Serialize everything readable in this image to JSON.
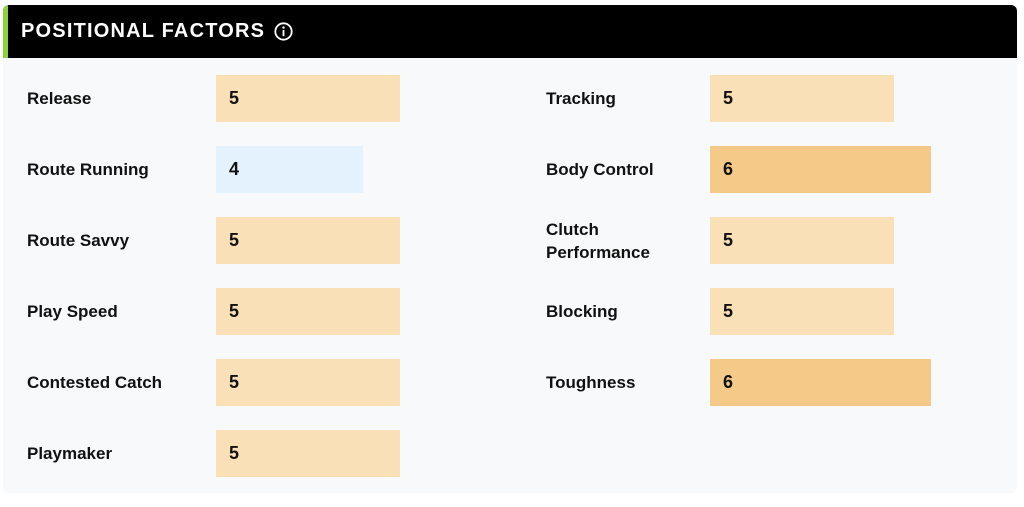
{
  "header": {
    "title": "POSITIONAL FACTORS",
    "info_icon": "info-circle-icon",
    "accent_color": "#8bd43c"
  },
  "colors": {
    "level_4": "#e3f2fc",
    "level_5": "#f9e0b6",
    "level_6": "#f5ca88"
  },
  "factors_left": [
    {
      "label": "Release",
      "value": "5"
    },
    {
      "label": "Route Running",
      "value": "4"
    },
    {
      "label": "Route Savvy",
      "value": "5"
    },
    {
      "label": "Play Speed",
      "value": "5"
    },
    {
      "label": "Contested Catch",
      "value": "5"
    },
    {
      "label": "Playmaker",
      "value": "5"
    }
  ],
  "factors_right": [
    {
      "label": "Tracking",
      "value": "5"
    },
    {
      "label": "Body Control",
      "value": "6"
    },
    {
      "label": "Clutch Performance",
      "value": "5"
    },
    {
      "label": "Blocking",
      "value": "5"
    },
    {
      "label": "Toughness",
      "value": "6"
    }
  ]
}
